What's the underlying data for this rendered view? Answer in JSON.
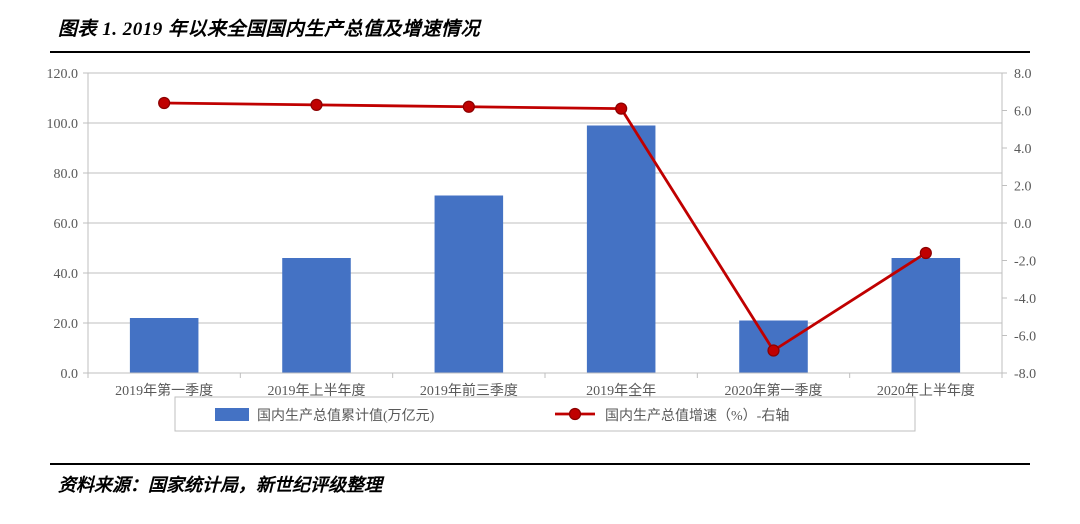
{
  "title": "图表 1. 2019 年以来全国国内生产总值及增速情况",
  "source": "资料来源：国家统计局，新世纪评级整理",
  "chart": {
    "type": "bar+line",
    "categories": [
      "2019年第一季度",
      "2019年上半年度",
      "2019年前三季度",
      "2019年全年",
      "2020年第一季度",
      "2020年上半年度"
    ],
    "bar_series": {
      "label": "国内生产总值累计值(万亿元)",
      "values": [
        22.0,
        46.0,
        71.0,
        99.0,
        21.0,
        46.0
      ],
      "color": "#4472c4"
    },
    "line_series": {
      "label": "国内生产总值增速（%）-右轴",
      "values": [
        6.4,
        6.3,
        6.2,
        6.1,
        -6.8,
        -1.6
      ],
      "line_color": "#c00000",
      "marker_fill": "#c00000",
      "marker_stroke": "#8b0000",
      "marker_radius": 5.5,
      "line_width": 2.8
    },
    "y_left": {
      "min": 0.0,
      "max": 120.0,
      "step": 20.0,
      "ticks": [
        "0.0",
        "20.0",
        "40.0",
        "60.0",
        "80.0",
        "100.0",
        "120.0"
      ]
    },
    "y_right": {
      "min": -8.0,
      "max": 8.0,
      "step": 2.0,
      "ticks": [
        "-8.0",
        "-6.0",
        "-4.0",
        "-2.0",
        "0.0",
        "2.0",
        "4.0",
        "6.0",
        "8.0"
      ]
    },
    "layout": {
      "bar_width_ratio": 0.45,
      "plot_border_color": "#bfbfbf",
      "grid_color": "#bfbfbf",
      "axis_font_size": 14,
      "legend_font_size": 14,
      "bg_color": "#ffffff",
      "tick_mark_len": 5
    }
  }
}
